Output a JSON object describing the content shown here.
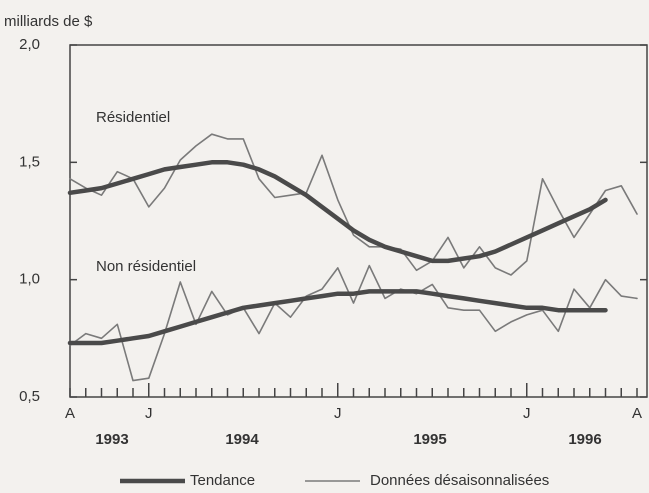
{
  "chart_data": {
    "type": "line",
    "ylabel": "milliards de $",
    "categories": [
      "A",
      null,
      null,
      null,
      null,
      "J",
      null,
      null,
      null,
      null,
      null,
      null,
      null,
      null,
      null,
      null,
      null,
      "J",
      null,
      null,
      null,
      null,
      null,
      null,
      null,
      null,
      null,
      null,
      null,
      "J",
      null,
      null,
      null,
      null,
      null,
      null,
      "A"
    ],
    "year_labels": [
      "1993",
      "1994",
      "1995",
      "1996"
    ],
    "ylim": [
      0.5,
      2.0
    ],
    "yticks": [
      {
        "value": 0.5,
        "label": "0,5"
      },
      {
        "value": 1.0,
        "label": "1,0"
      },
      {
        "value": 1.5,
        "label": "1,5"
      },
      {
        "value": 2.0,
        "label": "2,0"
      }
    ],
    "legend": [
      {
        "name": "Tendance",
        "color": "#4a4a4a"
      },
      {
        "name": "Données désaisonnalisées",
        "color": "#7a7a7a"
      }
    ],
    "series": [
      {
        "name": "Résidentiel",
        "trend": [
          1.37,
          1.38,
          1.39,
          1.41,
          1.43,
          1.45,
          1.47,
          1.48,
          1.49,
          1.5,
          1.5,
          1.49,
          1.47,
          1.44,
          1.4,
          1.36,
          1.31,
          1.26,
          1.21,
          1.17,
          1.14,
          1.12,
          1.1,
          1.08,
          1.08,
          1.09,
          1.1,
          1.12,
          1.15,
          1.18,
          1.21,
          1.24,
          1.27,
          1.3,
          1.34,
          null,
          null
        ],
        "raw": [
          1.43,
          1.39,
          1.36,
          1.46,
          1.43,
          1.31,
          1.39,
          1.51,
          1.57,
          1.62,
          1.6,
          1.6,
          1.43,
          1.35,
          1.36,
          1.37,
          1.53,
          1.34,
          1.19,
          1.14,
          1.14,
          1.13,
          1.04,
          1.08,
          1.18,
          1.05,
          1.14,
          1.05,
          1.02,
          1.08,
          1.43,
          1.3,
          1.18,
          1.28,
          1.38,
          1.4,
          1.28
        ]
      },
      {
        "name": "Non résidentiel",
        "trend": [
          0.73,
          0.73,
          0.73,
          0.74,
          0.75,
          0.76,
          0.78,
          0.8,
          0.82,
          0.84,
          0.86,
          0.88,
          0.89,
          0.9,
          0.91,
          0.92,
          0.93,
          0.94,
          0.94,
          0.95,
          0.95,
          0.95,
          0.95,
          0.94,
          0.93,
          0.92,
          0.91,
          0.9,
          0.89,
          0.88,
          0.88,
          0.87,
          0.87,
          0.87,
          0.87,
          null,
          null
        ],
        "raw": [
          0.72,
          0.77,
          0.75,
          0.81,
          0.57,
          0.58,
          0.77,
          0.99,
          0.81,
          0.95,
          0.85,
          0.88,
          0.77,
          0.9,
          0.84,
          0.93,
          0.96,
          1.05,
          0.9,
          1.06,
          0.92,
          0.96,
          0.94,
          0.98,
          0.88,
          0.87,
          0.87,
          0.78,
          0.82,
          0.85,
          0.87,
          0.78,
          0.96,
          0.88,
          1.0,
          0.93,
          0.92
        ]
      }
    ]
  }
}
